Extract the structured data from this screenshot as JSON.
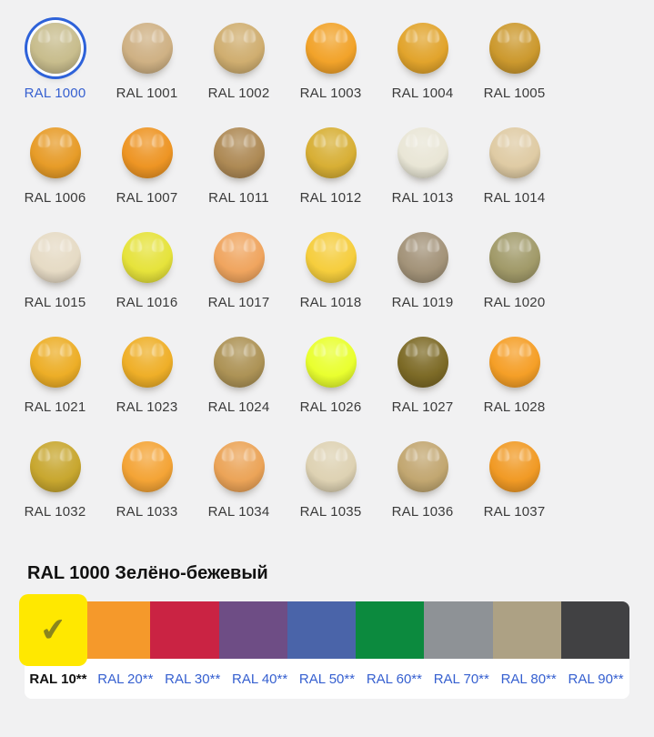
{
  "page": {
    "background": "#f1f1f2"
  },
  "grid": {
    "items": [
      {
        "label": "RAL 1000",
        "color": "#C8BD8D",
        "selected": true
      },
      {
        "label": "RAL 1001",
        "color": "#CFB184",
        "selected": false
      },
      {
        "label": "RAL 1002",
        "color": "#D0AE70",
        "selected": false
      },
      {
        "label": "RAL 1003",
        "color": "#F2A32A",
        "selected": false
      },
      {
        "label": "RAL 1004",
        "color": "#E2A42C",
        "selected": false
      },
      {
        "label": "RAL 1005",
        "color": "#CC992E",
        "selected": false
      },
      {
        "label": "RAL 1006",
        "color": "#E79C28",
        "selected": false
      },
      {
        "label": "RAL 1007",
        "color": "#EE9524",
        "selected": false
      },
      {
        "label": "RAL 1011",
        "color": "#AE8A55",
        "selected": false
      },
      {
        "label": "RAL 1012",
        "color": "#D8AF35",
        "selected": false
      },
      {
        "label": "RAL 1013",
        "color": "#E9E6D6",
        "selected": false
      },
      {
        "label": "RAL 1014",
        "color": "#DFCBA4",
        "selected": false
      },
      {
        "label": "RAL 1015",
        "color": "#E6DBC5",
        "selected": false
      },
      {
        "label": "RAL 1016",
        "color": "#E6E33B",
        "selected": false
      },
      {
        "label": "RAL 1017",
        "color": "#F0A55F",
        "selected": false
      },
      {
        "label": "RAL 1018",
        "color": "#F6CE3D",
        "selected": false
      },
      {
        "label": "RAL 1019",
        "color": "#A39379",
        "selected": false
      },
      {
        "label": "RAL 1020",
        "color": "#A19A69",
        "selected": false
      },
      {
        "label": "RAL 1021",
        "color": "#EDAE27",
        "selected": false
      },
      {
        "label": "RAL 1023",
        "color": "#EFAF28",
        "selected": false
      },
      {
        "label": "RAL 1024",
        "color": "#AD9356",
        "selected": false
      },
      {
        "label": "RAL 1026",
        "color": "#E9FF2F",
        "selected": false
      },
      {
        "label": "RAL 1027",
        "color": "#7D6B27",
        "selected": false
      },
      {
        "label": "RAL 1028",
        "color": "#F59F27",
        "selected": false
      },
      {
        "label": "RAL 1032",
        "color": "#C8A72F",
        "selected": false
      },
      {
        "label": "RAL 1033",
        "color": "#F4A436",
        "selected": false
      },
      {
        "label": "RAL 1034",
        "color": "#ECA458",
        "selected": false
      },
      {
        "label": "RAL 1035",
        "color": "#DED2B3",
        "selected": false
      },
      {
        "label": "RAL 1036",
        "color": "#C2A771",
        "selected": false
      },
      {
        "label": "RAL 1037",
        "color": "#F19A25",
        "selected": false
      }
    ]
  },
  "detail": {
    "title": "RAL 1000 Зелёно-бежевый"
  },
  "groups": {
    "tabs": [
      {
        "label": "RAL 10**",
        "color": "#FFE800",
        "active": true
      },
      {
        "label": "RAL 20**",
        "color": "#F5992B",
        "active": false
      },
      {
        "label": "RAL 30**",
        "color": "#CA2343",
        "active": false
      },
      {
        "label": "RAL 40**",
        "color": "#6E4D85",
        "active": false
      },
      {
        "label": "RAL 50**",
        "color": "#4A64A9",
        "active": false
      },
      {
        "label": "RAL 60**",
        "color": "#0C8A3E",
        "active": false
      },
      {
        "label": "RAL 70**",
        "color": "#8E9296",
        "active": false
      },
      {
        "label": "RAL 80**",
        "color": "#ADA184",
        "active": false
      },
      {
        "label": "RAL 90**",
        "color": "#414143",
        "active": false
      }
    ]
  },
  "icons": {
    "check": "✔"
  },
  "colors": {
    "link": "#3660d0",
    "selection_ring": "#2e62d9",
    "label_text": "#3a3a3a",
    "check_mark": "#8a851e"
  }
}
